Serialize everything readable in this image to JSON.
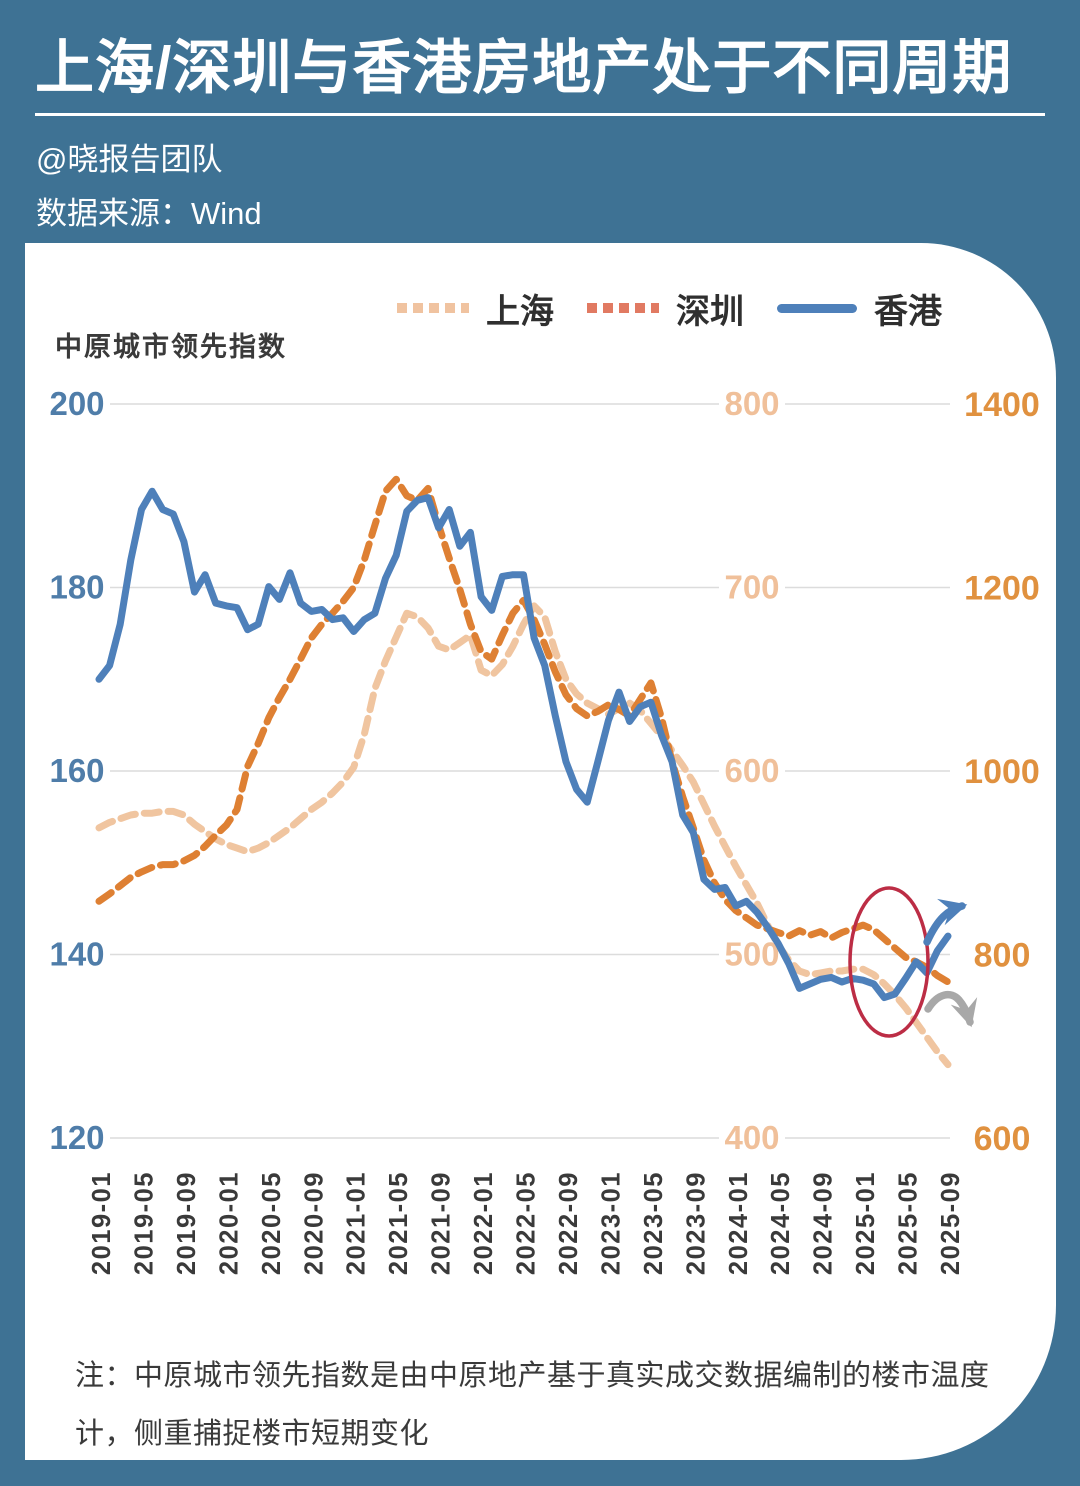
{
  "page": {
    "background": "#3e7294"
  },
  "header": {
    "title": "上海/深圳与香港房地产处于不同周期",
    "byline": "@晓报告团队",
    "source": "数据来源：Wind"
  },
  "note": "注：中原城市领先指数是由中原地产基于真实成交数据编制的楼市温度计，侧重捕捉楼市短期变化",
  "chart_data": {
    "type": "line",
    "title": "中原城市领先指数",
    "x_start": "2019-01",
    "x_end": "2025-09",
    "x_tick_step_months": 4,
    "x_tick_labels": [
      "2019-01",
      "2019-05",
      "2019-09",
      "2020-01",
      "2020-05",
      "2020-09",
      "2021-01",
      "2021-05",
      "2021-09",
      "2022-01",
      "2022-05",
      "2022-09",
      "2023-01",
      "2023-05",
      "2023-09",
      "2024-01",
      "2024-05",
      "2024-09",
      "2025-01",
      "2025-05",
      "2025-09"
    ],
    "grid": true,
    "grid_color": "#dcdcdc",
    "legend_position": "top-right",
    "axes": {
      "left": {
        "series": "香港",
        "ticks": [
          200,
          180,
          160,
          140,
          120
        ],
        "range": [
          120,
          200
        ],
        "label_color": "#4f7da9"
      },
      "middle": {
        "series": "上海",
        "ticks": [
          800,
          700,
          600,
          500,
          400
        ],
        "range": [
          400,
          800
        ],
        "label_color": "#f0c09a"
      },
      "right": {
        "series": "深圳",
        "ticks": [
          1400,
          1200,
          1000,
          800,
          600
        ],
        "range": [
          600,
          1400
        ],
        "label_color": "#e0913f"
      }
    },
    "series": [
      {
        "name": "上海",
        "axis": "middle",
        "style": "dashed",
        "color": "#f0c5a0",
        "legend_color": "#f0c3a0",
        "values": [
          569,
          572,
          574,
          576,
          577,
          577,
          578,
          578,
          576,
          571,
          567,
          563,
          560,
          558,
          556,
          558,
          561,
          565,
          569,
          574,
          579,
          583,
          588,
          594,
          602,
          620,
          645,
          660,
          673,
          686,
          684,
          678,
          668,
          666,
          670,
          674,
          655,
          652,
          658,
          668,
          680,
          690,
          684,
          665,
          650,
          642,
          637,
          634,
          631,
          634,
          637,
          633,
          626,
          619,
          611,
          603,
          594,
          582,
          570,
          559,
          548,
          538,
          528,
          516,
          505,
          497,
          491,
          489,
          490,
          491,
          491,
          492,
          492,
          489,
          484,
          478,
          471,
          463,
          455,
          447,
          440
        ]
      },
      {
        "name": "深圳",
        "axis": "right",
        "style": "dashed",
        "color": "#de8033",
        "legend_color": "#e17a62",
        "values": [
          858,
          866,
          875,
          884,
          890,
          895,
          898,
          898,
          902,
          908,
          918,
          930,
          941,
          958,
          1005,
          1030,
          1058,
          1080,
          1100,
          1122,
          1145,
          1160,
          1172,
          1185,
          1200,
          1230,
          1268,
          1305,
          1318,
          1300,
          1295,
          1308,
          1268,
          1232,
          1198,
          1160,
          1130,
          1122,
          1148,
          1172,
          1186,
          1165,
          1138,
          1108,
          1083,
          1068,
          1060,
          1065,
          1072,
          1067,
          1060,
          1078,
          1096,
          1058,
          1010,
          972,
          938,
          903,
          878,
          860,
          848,
          840,
          832,
          828,
          824,
          820,
          826,
          821,
          825,
          818,
          824,
          828,
          832,
          827,
          817,
          807,
          797,
          792,
          786,
          777,
          770
        ]
      },
      {
        "name": "香港",
        "axis": "left",
        "style": "solid",
        "color": "#4e80ba",
        "legend_color": "#4e80ba",
        "values": [
          170,
          171.5,
          176,
          183,
          188.5,
          190.5,
          188.5,
          188,
          185,
          179.5,
          181.4,
          178.3,
          178,
          177.8,
          175.4,
          176,
          180.1,
          178.7,
          181.6,
          178.3,
          177.4,
          177.6,
          176.5,
          176.7,
          175.2,
          176.5,
          177.2,
          181,
          183.5,
          188.3,
          189.5,
          189.8,
          186.5,
          188.5,
          184.5,
          186,
          179,
          177.5,
          181.2,
          181.4,
          181.4,
          174.5,
          171.5,
          166,
          161,
          158,
          156.6,
          161,
          165.5,
          168.6,
          165.4,
          167,
          167.5,
          163.9,
          161,
          155.2,
          153.3,
          148.2,
          147.1,
          147.3,
          145.3,
          145.8,
          144.6,
          143,
          141.2,
          139,
          136.3,
          136.8,
          137.3,
          137.5,
          137,
          137.4,
          137.2,
          136.8,
          135.3,
          135.7,
          137.4,
          139.2,
          138,
          140.4,
          142
        ]
      }
    ],
    "annotations": {
      "ellipse": {
        "color": "#bc2d45",
        "around": "2025-01"
      },
      "arrows": [
        {
          "direction": "up-right",
          "color": "#4e80ba"
        },
        {
          "direction": "down-right",
          "color": "#a8a8a8"
        }
      ]
    }
  }
}
